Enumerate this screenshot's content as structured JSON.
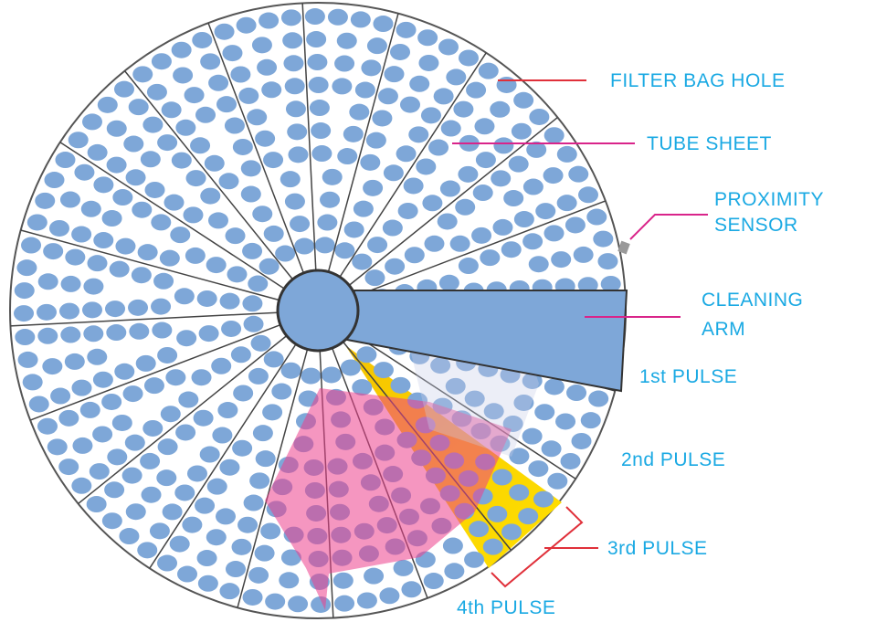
{
  "labels": {
    "filter_bag_hole": "FILTER BAG HOLE",
    "tube_sheet": "TUBE SHEET",
    "proximity_sensor": [
      "PROXIMITY",
      "SENSOR"
    ],
    "cleaning_arm": [
      "CLEANING",
      "ARM"
    ],
    "pulses": [
      "1st PULSE",
      "2nd PULSE",
      "3rd PULSE",
      "4th PULSE"
    ]
  }
}
